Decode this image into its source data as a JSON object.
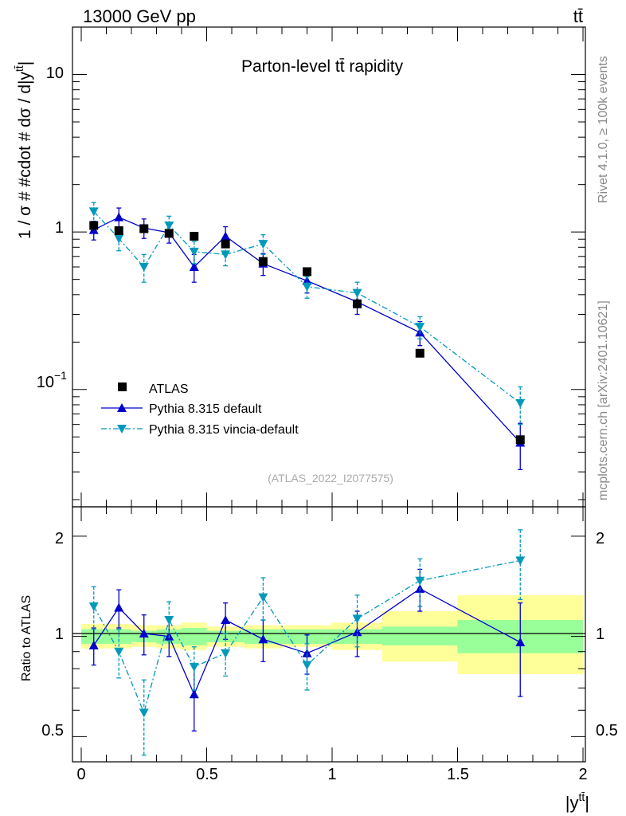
{
  "header": {
    "beam": "13000 GeV pp",
    "process": "tt̄"
  },
  "side_labels": {
    "rivet": "Rivet 4.1.0, ≥ 100k events",
    "mcplots": "mcplots.cern.ch [arXiv:2401.10621]"
  },
  "colors": {
    "atlas": "#000000",
    "pythia_default": "#0000cc",
    "pythia_vincia": "#0099bb",
    "band_inner": "#99ff99",
    "band_outer": "#ffff99"
  },
  "chart_data": [
    {
      "type": "line",
      "title": "Parton-level tt̄ rapidity",
      "ylabel": "1 / σ # #cdot # dσ / d|y",
      "ylabel_sup": "tt̄",
      "ylabel_end": "|",
      "yscale": "log",
      "ylim": [
        0.018,
        20
      ],
      "xlim": [
        -0.1,
        2.0
      ],
      "y_ticks": [
        {
          "value": 10,
          "label": "10"
        },
        {
          "value": 1,
          "label": "1"
        },
        {
          "value": 0.1,
          "label": "10",
          "sup": "−1"
        }
      ],
      "analysis": "(ATLAS_2022_I2077575)",
      "legend_position": "bottom-left",
      "series": [
        {
          "name": "ATLAS",
          "marker": "square",
          "x": [
            0.05,
            0.15,
            0.25,
            0.35,
            0.45,
            0.575,
            0.725,
            0.9,
            1.1,
            1.35,
            1.75
          ],
          "y": [
            1.1,
            1.02,
            1.05,
            0.98,
            0.94,
            0.84,
            0.65,
            0.56,
            0.35,
            0.17,
            0.048
          ],
          "yerr": [
            0.03,
            0.03,
            0.03,
            0.03,
            0.03,
            0.03,
            0.02,
            0.02,
            0.01,
            0.005,
            0.002
          ]
        },
        {
          "name": "Pythia 8.315 default",
          "marker": "triangle-up",
          "x": [
            0.05,
            0.15,
            0.25,
            0.35,
            0.45,
            0.575,
            0.725,
            0.9,
            1.1,
            1.35,
            1.75
          ],
          "y": [
            1.03,
            1.24,
            1.06,
            0.99,
            0.6,
            0.94,
            0.63,
            0.49,
            0.36,
            0.23,
            0.046
          ],
          "yerr": [
            0.14,
            0.18,
            0.15,
            0.14,
            0.12,
            0.14,
            0.1,
            0.08,
            0.06,
            0.04,
            0.015
          ]
        },
        {
          "name": "Pythia 8.315 vincia-default",
          "marker": "triangle-down",
          "x": [
            0.05,
            0.15,
            0.25,
            0.35,
            0.45,
            0.575,
            0.725,
            0.9,
            1.1,
            1.35,
            1.75
          ],
          "y": [
            1.35,
            0.91,
            0.6,
            1.1,
            0.75,
            0.72,
            0.84,
            0.45,
            0.41,
            0.25,
            0.082
          ],
          "yerr": [
            0.19,
            0.15,
            0.12,
            0.16,
            0.12,
            0.11,
            0.12,
            0.07,
            0.07,
            0.04,
            0.022
          ]
        }
      ]
    },
    {
      "type": "line",
      "title": "",
      "xlabel": "|y",
      "xlabel_sup": "tt̄",
      "xlabel_end": "|",
      "ylabel": "Ratio to ATLAS",
      "yscale": "log",
      "ylim": [
        0.42,
        2.45
      ],
      "xlim": [
        -0.1,
        2.0
      ],
      "x_ticks": [
        {
          "value": 0,
          "label": "0"
        },
        {
          "value": 0.5,
          "label": "0.5"
        },
        {
          "value": 1,
          "label": "1"
        },
        {
          "value": 1.5,
          "label": "1.5"
        },
        {
          "value": 2,
          "label": "2"
        }
      ],
      "y_ticks": [
        {
          "value": 2,
          "label": "2"
        },
        {
          "value": 1,
          "label": "1"
        },
        {
          "value": 0.5,
          "label": "0.5"
        }
      ],
      "bands": {
        "edges": [
          0.0,
          0.1,
          0.2,
          0.3,
          0.4,
          0.5,
          0.65,
          0.8,
          1.0,
          1.2,
          1.5,
          2.0
        ],
        "inner": [
          [
            0.95,
            1.05
          ],
          [
            0.95,
            1.05
          ],
          [
            0.96,
            1.04
          ],
          [
            0.95,
            1.05
          ],
          [
            0.94,
            1.06
          ],
          [
            0.96,
            1.04
          ],
          [
            0.95,
            1.05
          ],
          [
            0.95,
            1.05
          ],
          [
            0.95,
            1.05
          ],
          [
            0.94,
            1.07
          ],
          [
            0.89,
            1.12
          ]
        ],
        "outer": [
          [
            0.92,
            1.09
          ],
          [
            0.92,
            1.09
          ],
          [
            0.93,
            1.08
          ],
          [
            0.92,
            1.08
          ],
          [
            0.91,
            1.1
          ],
          [
            0.93,
            1.07
          ],
          [
            0.92,
            1.08
          ],
          [
            0.93,
            1.08
          ],
          [
            0.91,
            1.1
          ],
          [
            0.84,
            1.19
          ],
          [
            0.77,
            1.33
          ]
        ]
      },
      "series": [
        {
          "name": "Pythia 8.315 default",
          "marker": "triangle-up",
          "x": [
            0.05,
            0.15,
            0.25,
            0.35,
            0.45,
            0.575,
            0.725,
            0.9,
            1.1,
            1.35,
            1.75
          ],
          "y": [
            0.94,
            1.22,
            1.02,
            1.0,
            0.67,
            1.12,
            0.98,
            0.89,
            1.03,
            1.39,
            0.96
          ],
          "yerr": [
            0.12,
            0.16,
            0.14,
            0.13,
            0.15,
            0.14,
            0.14,
            0.12,
            0.16,
            0.2,
            0.3
          ]
        },
        {
          "name": "Pythia 8.315 vincia-default",
          "marker": "triangle-down",
          "x": [
            0.05,
            0.15,
            0.25,
            0.35,
            0.45,
            0.575,
            0.725,
            0.9,
            1.1,
            1.35,
            1.75
          ],
          "y": [
            1.23,
            0.9,
            0.59,
            1.12,
            0.81,
            0.89,
            1.31,
            0.82,
            1.13,
            1.47,
            1.69
          ],
          "yerr": [
            0.18,
            0.15,
            0.15,
            0.15,
            0.12,
            0.13,
            0.19,
            0.13,
            0.2,
            0.24,
            0.4
          ]
        }
      ]
    }
  ]
}
